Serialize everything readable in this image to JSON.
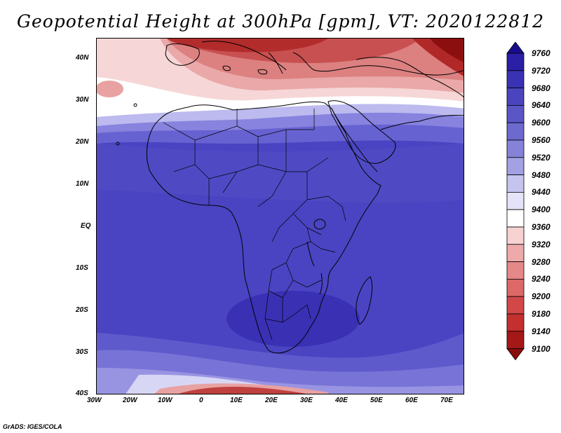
{
  "title": "Geopotential Height at 300hPa [gpm], VT: 2020122812",
  "credit": "GrADS: IGES/COLA",
  "lat_labels": [
    "40N",
    "30N",
    "20N",
    "10N",
    "EQ",
    "10S",
    "20S",
    "30S",
    "40S"
  ],
  "lon_labels": [
    "30W",
    "20W",
    "10W",
    "0",
    "10E",
    "20E",
    "30E",
    "40E",
    "50E",
    "60E",
    "70E"
  ],
  "colorbar": {
    "levels": [
      "9760",
      "9720",
      "9680",
      "9640",
      "9600",
      "9560",
      "9520",
      "9480",
      "9440",
      "9400",
      "9360",
      "9320",
      "9280",
      "9240",
      "9200",
      "9180",
      "9140",
      "9100"
    ],
    "colors": [
      "#1a0d8c",
      "#2a1fa6",
      "#3a32b4",
      "#4a44be",
      "#5a56c6",
      "#6c6ace",
      "#8582d8",
      "#a3a0e4",
      "#c6c4ef",
      "#e4e3f8",
      "#ffffff",
      "#f7d2d2",
      "#eeaaaa",
      "#e58888",
      "#dc6868",
      "#d24848",
      "#c43030",
      "#a51818",
      "#8b0c0c"
    ]
  },
  "map_colors": {
    "deep_blue": "#3e34bd",
    "mid_blue": "#5b55cc",
    "light_blue": "#8a86de",
    "pale_blue": "#c2c0f0",
    "white": "#ffffff",
    "pale_red": "#f4cccc",
    "light_red": "#e8a2a2",
    "mid_red": "#d46a6a",
    "dark_red": "#b03030",
    "darkest_red": "#8c0f0f",
    "land_line": "#000000"
  }
}
